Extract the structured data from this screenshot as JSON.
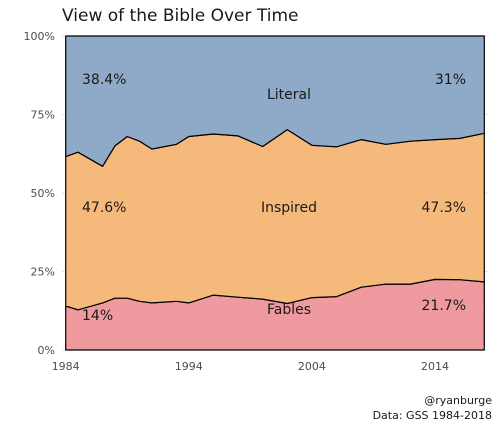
{
  "chart_data": {
    "type": "area",
    "title": "View of the Bible Over Time",
    "stacked_percent": true,
    "x": [
      1984,
      1985,
      1987,
      1988,
      1989,
      1990,
      1991,
      1993,
      1994,
      1996,
      1998,
      2000,
      2002,
      2004,
      2006,
      2008,
      2010,
      2012,
      2014,
      2016,
      2018
    ],
    "series": [
      {
        "name": "Fables",
        "color": "#ee9a9e",
        "values": [
          14.0,
          12.8,
          15.0,
          16.5,
          16.5,
          15.5,
          15.0,
          15.5,
          15.0,
          17.5,
          16.8,
          16.2,
          14.8,
          16.7,
          17.0,
          20.0,
          21.0,
          21.0,
          22.5,
          22.4,
          21.7
        ]
      },
      {
        "name": "Inspired",
        "color": "#f6b97c",
        "values": [
          47.6,
          50.2,
          43.5,
          48.5,
          51.5,
          51.0,
          49.0,
          50.0,
          53.0,
          51.3,
          51.4,
          48.6,
          55.4,
          48.5,
          47.7,
          47.0,
          44.5,
          45.5,
          44.5,
          45.0,
          47.3
        ]
      },
      {
        "name": "Literal",
        "color": "#8fa9c8",
        "values": [
          38.4,
          37.0,
          41.5,
          35.0,
          32.0,
          33.5,
          36.0,
          34.5,
          32.0,
          31.2,
          31.8,
          35.2,
          29.8,
          34.8,
          35.3,
          33.0,
          34.5,
          33.5,
          33.0,
          32.6,
          31.0
        ]
      }
    ],
    "band_labels": [
      "Literal",
      "Inspired",
      "Fables"
    ],
    "start_labels": [
      "38.4%",
      "47.6%",
      "14%"
    ],
    "end_labels": [
      "31%",
      "47.3%",
      "21.7%"
    ],
    "x_ticks": [
      "1984",
      "1994",
      "2004",
      "2014"
    ],
    "y_ticks": [
      "0%",
      "25%",
      "50%",
      "75%",
      "100%"
    ],
    "xlim": [
      1983.7,
      2018.3
    ],
    "ylim": [
      0,
      100
    ],
    "grid": true,
    "legend": "none"
  },
  "caption": {
    "line1": "@ryanburge",
    "line2": "Data: GSS 1984-2018"
  }
}
